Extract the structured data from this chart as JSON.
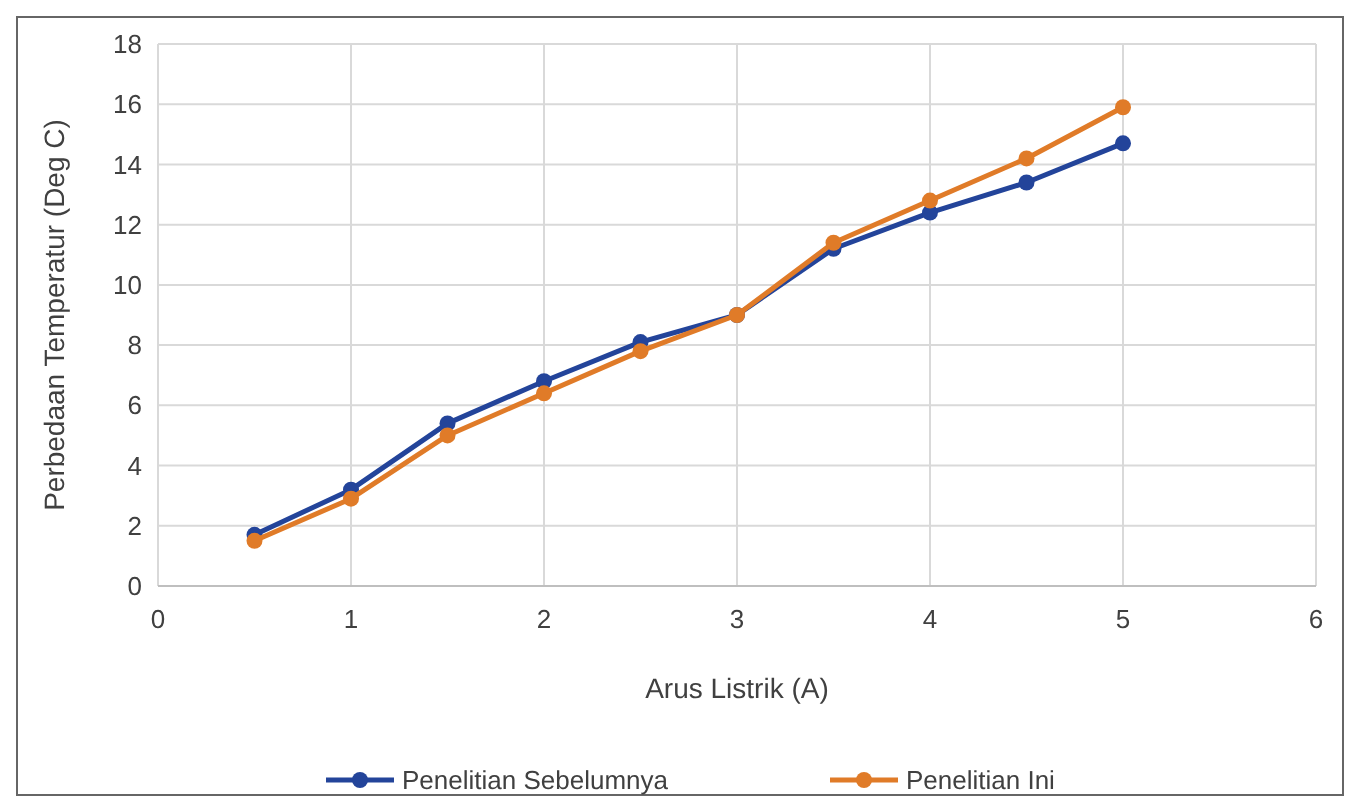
{
  "chart_data": {
    "type": "line",
    "xlabel": "Arus Listrik (A)",
    "ylabel": "Perbedaan Temperatur (Deg C)",
    "x": [
      0.5,
      1,
      1.5,
      2,
      2.5,
      3,
      3.5,
      4,
      4.5,
      5
    ],
    "series": [
      {
        "name": "Penelitian Sebelumnya",
        "color": "#23449a",
        "values": [
          1.7,
          3.2,
          5.4,
          6.8,
          8.1,
          9.0,
          11.2,
          12.4,
          13.4,
          14.7
        ]
      },
      {
        "name": "Penelitian Ini",
        "color": "#e07b28",
        "values": [
          1.5,
          2.9,
          5.0,
          6.4,
          7.8,
          9.0,
          11.4,
          12.8,
          14.2,
          15.9
        ]
      }
    ],
    "xlim": [
      0,
      6
    ],
    "xticks": [
      0,
      1,
      2,
      3,
      4,
      5,
      6
    ],
    "ylim": [
      0,
      18
    ],
    "yticks": [
      0,
      2,
      4,
      6,
      8,
      10,
      12,
      14,
      16,
      18
    ],
    "grid": true,
    "legend": "bottom",
    "marker": "circle",
    "line_style": "solid"
  }
}
